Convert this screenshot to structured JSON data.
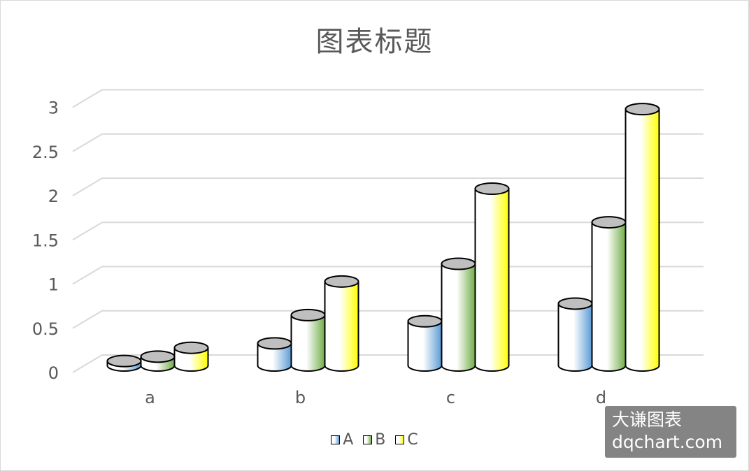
{
  "chart_data": {
    "type": "bar",
    "subtype": "3d-cylinder-clustered",
    "title": "图表标题",
    "xlabel": "",
    "ylabel": "",
    "categories": [
      "a",
      "b",
      "c",
      "d"
    ],
    "series": [
      {
        "name": "A",
        "values": [
          0.05,
          0.25,
          0.5,
          0.7
        ],
        "color": "#5b9bd5"
      },
      {
        "name": "B",
        "values": [
          0.1,
          0.57,
          1.15,
          1.62
        ],
        "color": "#70ad47"
      },
      {
        "name": "C",
        "values": [
          0.2,
          0.95,
          2.0,
          2.9
        ],
        "color": "#ffff00"
      }
    ],
    "y_ticks": [
      "0",
      "0.5",
      "1",
      "1.5",
      "2",
      "2.5",
      "3"
    ],
    "ylim": [
      0,
      3
    ],
    "grid": true,
    "legend_position": "bottom"
  },
  "watermark": {
    "line1": "大谦图表",
    "line2": "dqchart.com"
  }
}
